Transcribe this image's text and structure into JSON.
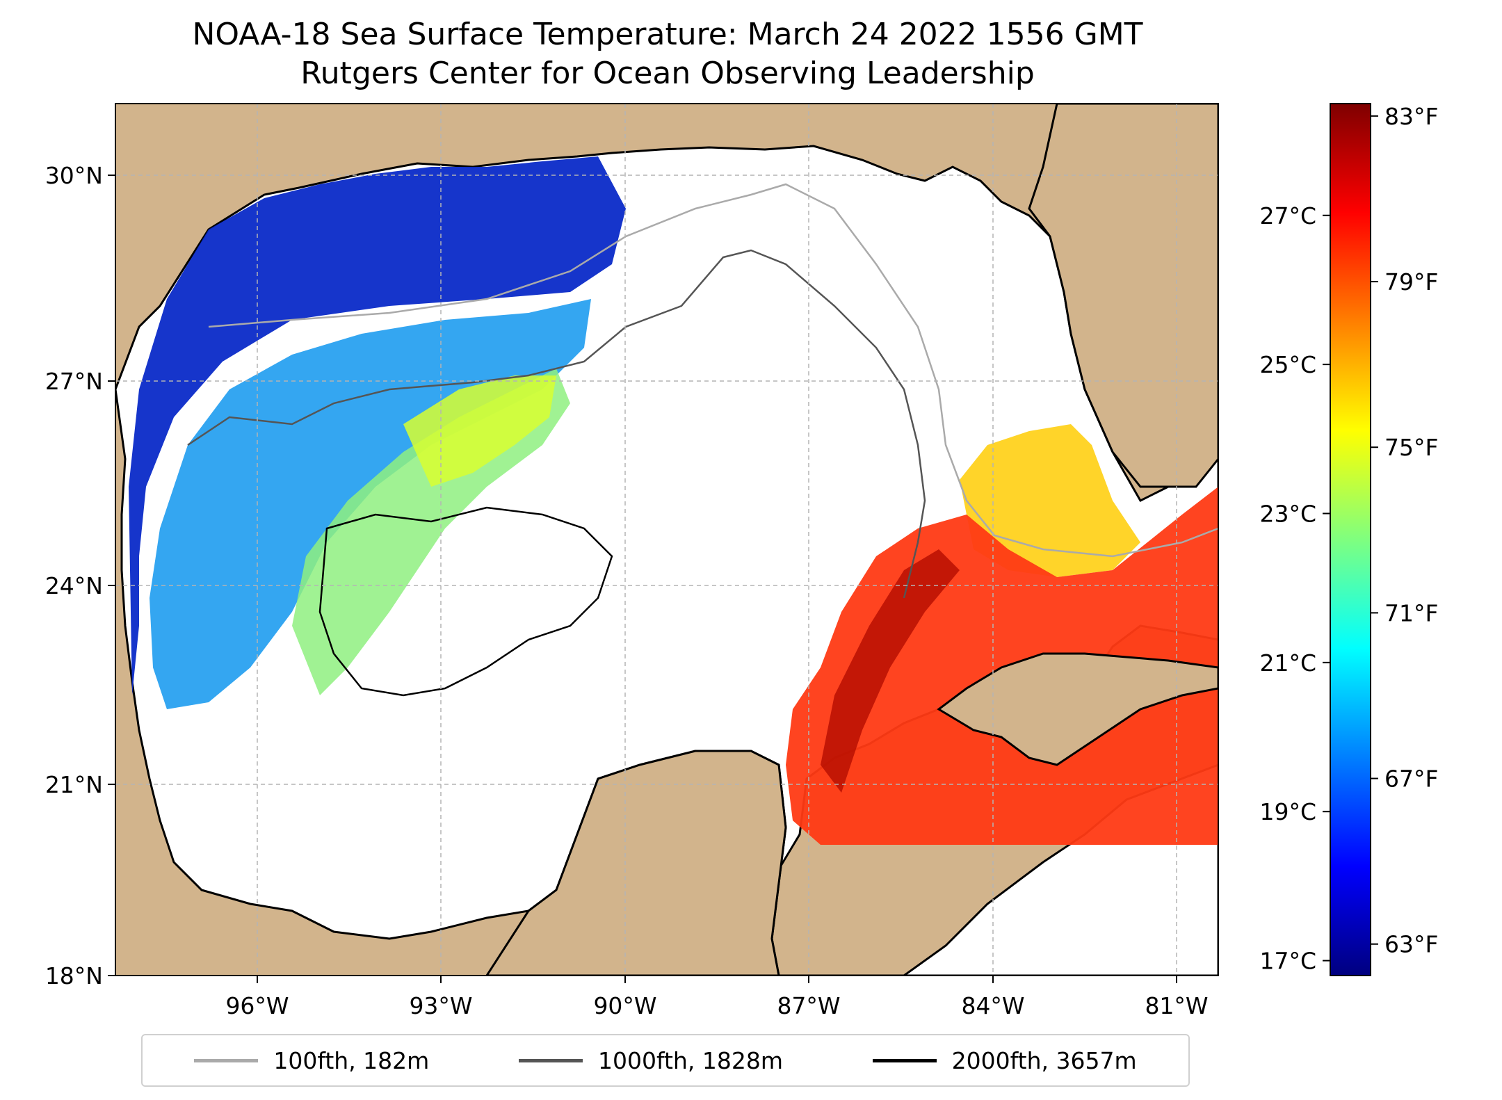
{
  "title": {
    "line1": "NOAA-18 Sea Surface Temperature: March 24 2022 1556 GMT",
    "line2": "Rutgers Center for Ocean Observing Leadership"
  },
  "map": {
    "lon_range": [
      -98.0,
      -80.3
    ],
    "lat_range": [
      18.0,
      31.0
    ],
    "gridlines": true,
    "land_color": "#d2b48c",
    "water_color": "#ffffff",
    "lon_ticks": [
      {
        "value": -96,
        "label": "96°W"
      },
      {
        "value": -93,
        "label": "93°W"
      },
      {
        "value": -90,
        "label": "90°W"
      },
      {
        "value": -87,
        "label": "87°W"
      },
      {
        "value": -84,
        "label": "84°W"
      },
      {
        "value": -81,
        "label": "81°W"
      }
    ],
    "lat_ticks": [
      {
        "value": 30,
        "label": "30°N"
      },
      {
        "value": 27,
        "label": "27°N"
      },
      {
        "value": 24,
        "label": "24°N"
      },
      {
        "value": 21,
        "label": "21°N"
      },
      {
        "value": 18,
        "label": "18°N"
      }
    ]
  },
  "colorbar": {
    "colormap": "jet",
    "range_celsius": [
      16.8,
      28.5
    ],
    "celsius_ticks": [
      {
        "value": 17,
        "label": "17°C"
      },
      {
        "value": 19,
        "label": "19°C"
      },
      {
        "value": 21,
        "label": "21°C"
      },
      {
        "value": 23,
        "label": "23°C"
      },
      {
        "value": 25,
        "label": "25°C"
      },
      {
        "value": 27,
        "label": "27°C"
      }
    ],
    "fahrenheit_ticks": [
      {
        "value": 63,
        "label": "63°F"
      },
      {
        "value": 67,
        "label": "67°F"
      },
      {
        "value": 71,
        "label": "71°F"
      },
      {
        "value": 75,
        "label": "75°F"
      },
      {
        "value": 79,
        "label": "79°F"
      },
      {
        "value": 83,
        "label": "83°F"
      }
    ],
    "colors": [
      "#00007f",
      "#0000ff",
      "#007fff",
      "#00ffff",
      "#7fff7f",
      "#ffff00",
      "#ff7f00",
      "#ff0000",
      "#7f0000"
    ]
  },
  "legend": [
    {
      "label": "100fth, 182m",
      "color": "#aaaaaa"
    },
    {
      "label": "1000fth, 1828m",
      "color": "#555555"
    },
    {
      "label": "2000fth, 3657m",
      "color": "#000000"
    }
  ]
}
